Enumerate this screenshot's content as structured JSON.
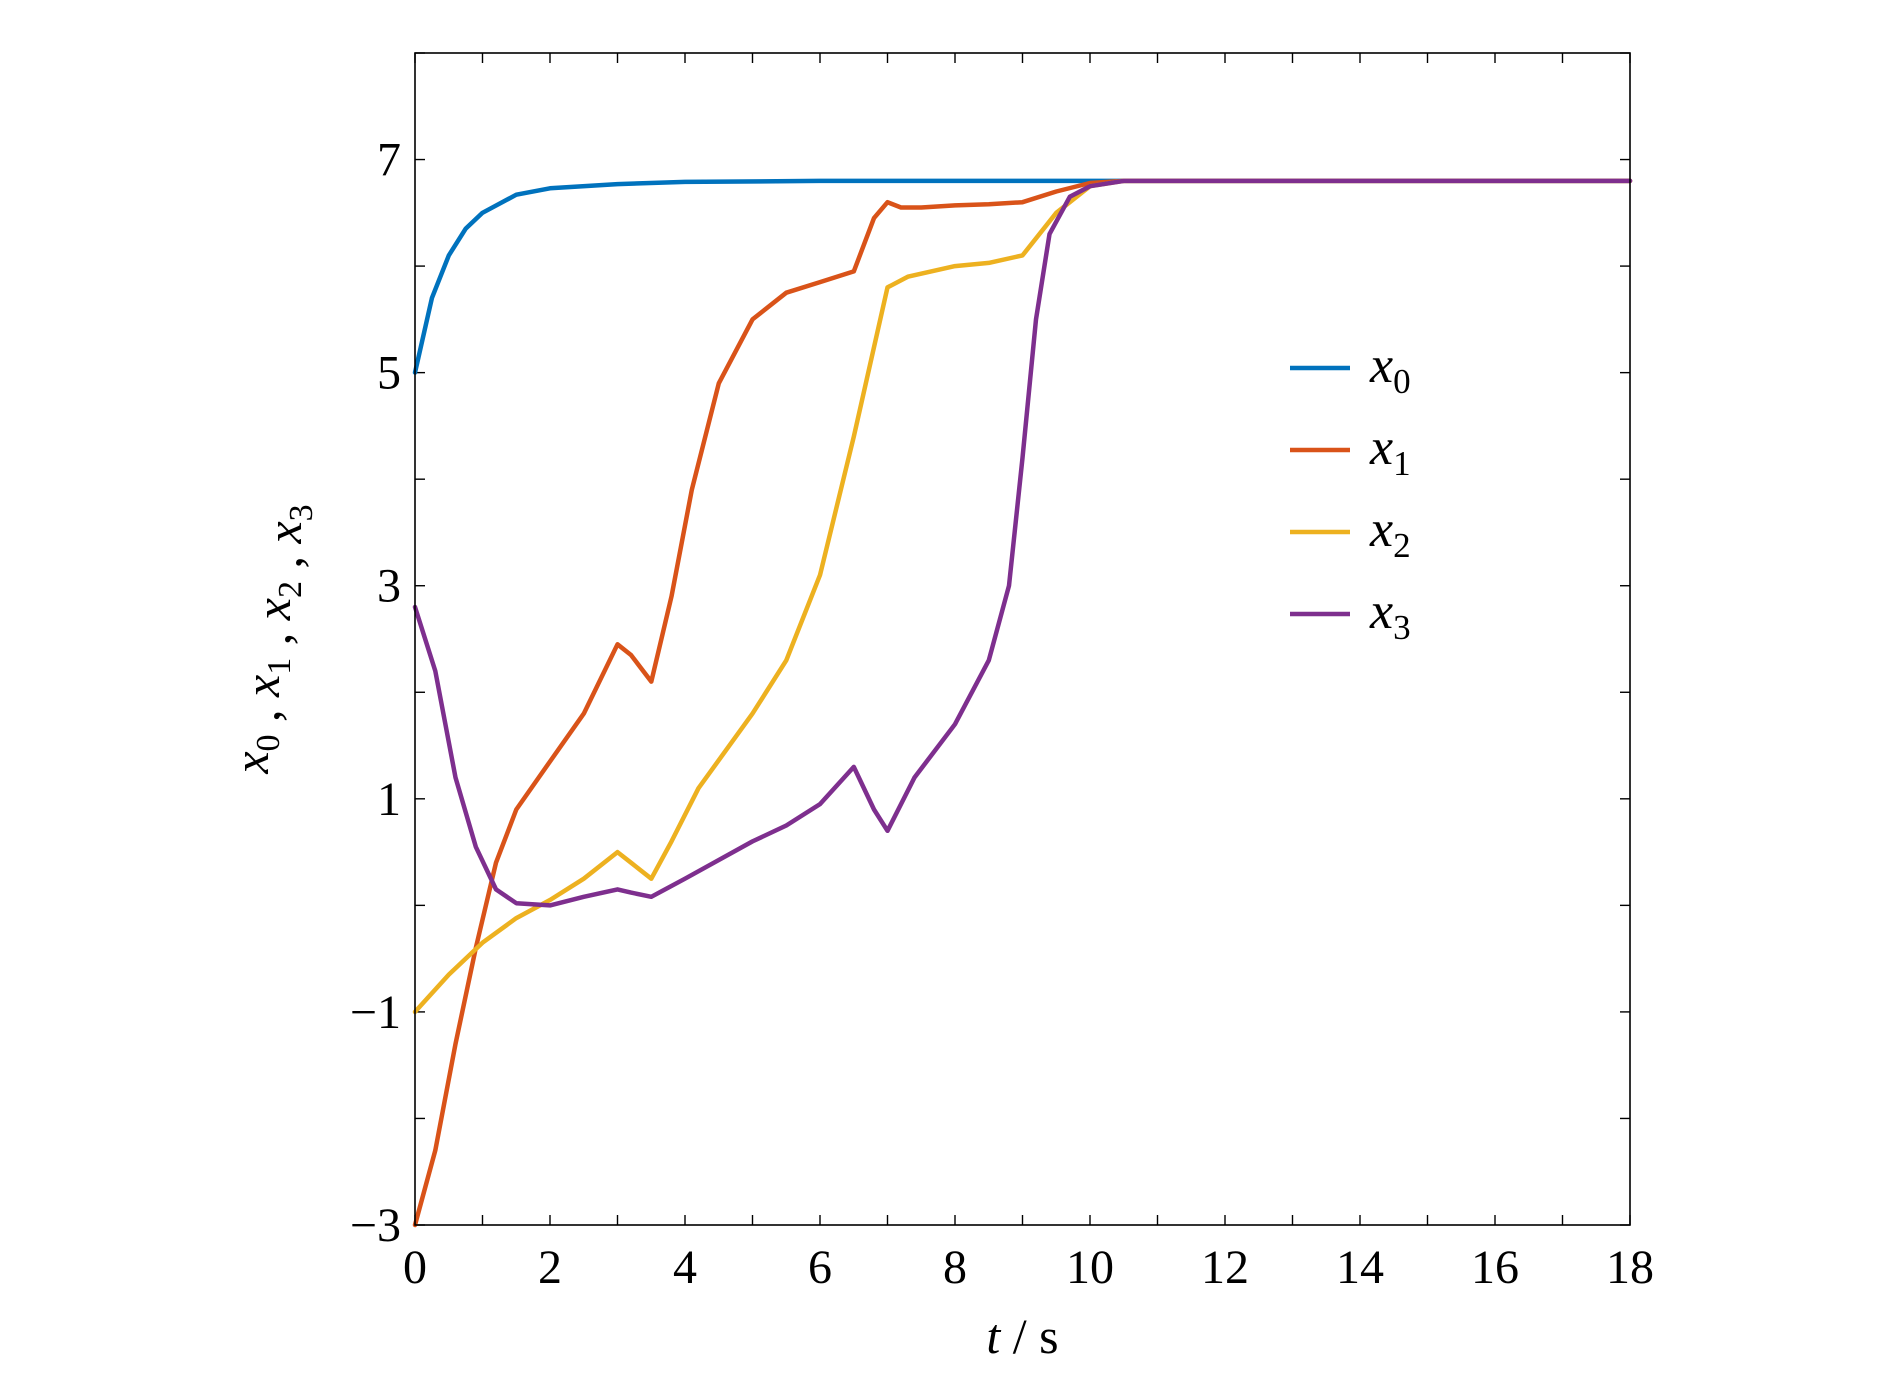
{
  "chart_data": {
    "type": "line",
    "xlabel": "t / s",
    "ylabel": "x0 , x1 , x2 , x3",
    "xlim": [
      0,
      18
    ],
    "ylim": [
      -3,
      8
    ],
    "xticks": [
      0,
      2,
      4,
      6,
      8,
      10,
      12,
      14,
      16,
      18
    ],
    "xticks_minor": [
      1,
      3,
      5,
      7,
      9,
      11,
      13,
      15,
      17
    ],
    "yticks": [
      -3,
      -1,
      1,
      3,
      5,
      7
    ],
    "yticks_minor": [
      -2,
      0,
      2,
      4,
      6,
      8
    ],
    "grid": false,
    "legend_position": "right",
    "series": [
      {
        "name": "x0",
        "color": "#0072BD",
        "points": [
          [
            0,
            5
          ],
          [
            0.25,
            5.7
          ],
          [
            0.5,
            6.1
          ],
          [
            0.75,
            6.35
          ],
          [
            1,
            6.5
          ],
          [
            1.5,
            6.67
          ],
          [
            2,
            6.73
          ],
          [
            3,
            6.77
          ],
          [
            4,
            6.79
          ],
          [
            6,
            6.8
          ],
          [
            8,
            6.8
          ],
          [
            10,
            6.8
          ],
          [
            12,
            6.8
          ],
          [
            14,
            6.8
          ],
          [
            16,
            6.8
          ],
          [
            18,
            6.8
          ]
        ]
      },
      {
        "name": "x1",
        "color": "#D95319",
        "points": [
          [
            0,
            -3
          ],
          [
            0.3,
            -2.3
          ],
          [
            0.6,
            -1.3
          ],
          [
            0.9,
            -0.4
          ],
          [
            1.2,
            0.4
          ],
          [
            1.5,
            0.9
          ],
          [
            2,
            1.35
          ],
          [
            2.5,
            1.8
          ],
          [
            3,
            2.45
          ],
          [
            3.2,
            2.35
          ],
          [
            3.5,
            2.1
          ],
          [
            3.8,
            2.9
          ],
          [
            4.1,
            3.9
          ],
          [
            4.5,
            4.9
          ],
          [
            5,
            5.5
          ],
          [
            5.5,
            5.75
          ],
          [
            6,
            5.85
          ],
          [
            6.5,
            5.95
          ],
          [
            6.8,
            6.45
          ],
          [
            7,
            6.6
          ],
          [
            7.2,
            6.55
          ],
          [
            7.5,
            6.55
          ],
          [
            8,
            6.57
          ],
          [
            8.5,
            6.58
          ],
          [
            9,
            6.6
          ],
          [
            9.5,
            6.7
          ],
          [
            10,
            6.78
          ],
          [
            10.5,
            6.8
          ],
          [
            11,
            6.8
          ],
          [
            12,
            6.8
          ],
          [
            14,
            6.8
          ],
          [
            16,
            6.8
          ],
          [
            18,
            6.8
          ]
        ]
      },
      {
        "name": "x2",
        "color": "#EDB120",
        "points": [
          [
            0,
            -1
          ],
          [
            0.5,
            -0.65
          ],
          [
            1,
            -0.35
          ],
          [
            1.5,
            -0.12
          ],
          [
            2,
            0.05
          ],
          [
            2.5,
            0.25
          ],
          [
            3,
            0.5
          ],
          [
            3.2,
            0.4
          ],
          [
            3.5,
            0.25
          ],
          [
            3.8,
            0.6
          ],
          [
            4.2,
            1.1
          ],
          [
            5,
            1.8
          ],
          [
            5.5,
            2.3
          ],
          [
            6,
            3.1
          ],
          [
            6.5,
            4.4
          ],
          [
            7,
            5.8
          ],
          [
            7.3,
            5.9
          ],
          [
            8,
            6.0
          ],
          [
            8.5,
            6.03
          ],
          [
            9,
            6.1
          ],
          [
            9.5,
            6.5
          ],
          [
            10,
            6.75
          ],
          [
            10.5,
            6.8
          ],
          [
            11,
            6.8
          ],
          [
            12,
            6.8
          ],
          [
            14,
            6.8
          ],
          [
            16,
            6.8
          ],
          [
            18,
            6.8
          ]
        ]
      },
      {
        "name": "x3",
        "color": "#7E2F8E",
        "points": [
          [
            0,
            2.8
          ],
          [
            0.3,
            2.2
          ],
          [
            0.6,
            1.2
          ],
          [
            0.9,
            0.55
          ],
          [
            1.2,
            0.15
          ],
          [
            1.5,
            0.02
          ],
          [
            2,
            0.0
          ],
          [
            2.5,
            0.08
          ],
          [
            3,
            0.15
          ],
          [
            3.2,
            0.12
          ],
          [
            3.5,
            0.08
          ],
          [
            4,
            0.25
          ],
          [
            5,
            0.6
          ],
          [
            5.5,
            0.75
          ],
          [
            6,
            0.95
          ],
          [
            6.5,
            1.3
          ],
          [
            6.8,
            0.9
          ],
          [
            7,
            0.7
          ],
          [
            7.4,
            1.2
          ],
          [
            8,
            1.7
          ],
          [
            8.5,
            2.3
          ],
          [
            8.8,
            3.0
          ],
          [
            9,
            4.2
          ],
          [
            9.2,
            5.5
          ],
          [
            9.4,
            6.3
          ],
          [
            9.7,
            6.65
          ],
          [
            10,
            6.75
          ],
          [
            10.5,
            6.8
          ],
          [
            11,
            6.8
          ],
          [
            12,
            6.8
          ],
          [
            14,
            6.8
          ],
          [
            16,
            6.8
          ],
          [
            18,
            6.8
          ]
        ]
      }
    ]
  }
}
